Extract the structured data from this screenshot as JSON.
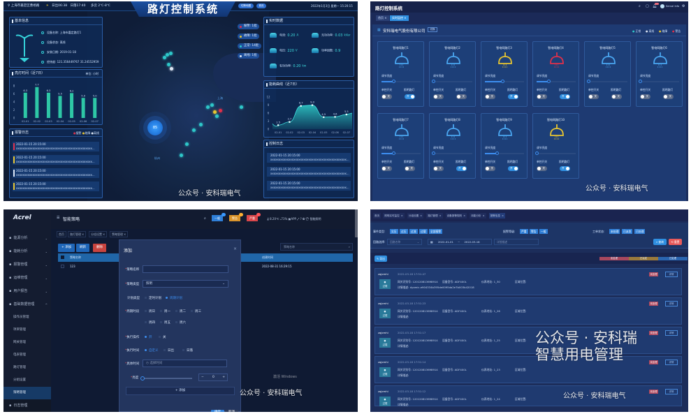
{
  "colors": {
    "alarm": "#e0304a",
    "fault": "#e8c530",
    "normal": "#2ec7c9",
    "offline": "#dfe8f5",
    "lamp_blue": "#4aa6f0",
    "accent": "#2f7fd8"
  },
  "q1": {
    "location": "上海市嘉定区曹杨路",
    "sunrise": "日出06:38",
    "sunset": "日落17:40",
    "weather": "多云 2℃-8℃",
    "title": "路灯控制系统",
    "btn_map": "切换地图",
    "btn_home": "首页",
    "datetime": "2022年1月3日 星期一 15:20:15",
    "basic": {
      "title": "基本信息",
      "rows": [
        "设备名称: 上海市嘉定路灯1",
        "设备状态: 离线",
        "安装日期: 2019-01-18",
        "经纬度: 121.356449767  31.24552959"
      ]
    },
    "legend_pills": [
      {
        "label": "报警: 1批",
        "color": "#e0304a"
      },
      {
        "label": "故障: 1批",
        "color": "#e8c530"
      },
      {
        "label": "正常: 14批",
        "color": "#2ec7c9"
      },
      {
        "label": "离线: 1批",
        "color": "#dfe8f5"
      }
    ],
    "cluster": "85",
    "cities": [
      "上海",
      "杭州"
    ],
    "realtime": {
      "title": "实时数据",
      "items": [
        {
          "label": "电流:",
          "value": "0.20",
          "unit": "A"
        },
        {
          "label": "无功功率:",
          "value": "0.03",
          "unit": "kVar"
        },
        {
          "label": "电压:",
          "value": "220",
          "unit": "V"
        },
        {
          "label": "功率因数:",
          "value": "0.9",
          "unit": ""
        },
        {
          "label": "有功功率:",
          "value": "0.20",
          "unit": "kw"
        }
      ]
    },
    "alarm_log": {
      "title": "报警日志",
      "legend": [
        "报警",
        "故障",
        "离线"
      ],
      "entries": [
        {
          "time": "2022-01-15  20:15:00",
          "text": "xxxxxxxxxxxxxxxxxxxxxxxxxxxxxxxxxxxxxxxxxxxxxx...",
          "color": "#e0304a"
        },
        {
          "time": "2022-01-15  20:15:00",
          "text": "xxxxxxxxxxxxxxxxxxxxxxxxxxxxxxxxxxxxxxxxxxxxxx...",
          "color": "#e8c530"
        },
        {
          "time": "2022-01-15  20:15:00",
          "text": "xxxxxxxxxxxxxxxxxxxxxxxxxxxxxxxxxxxxxxxxxxxxxx...",
          "color": "#dfe8f5"
        },
        {
          "time": "2022-01-15  20:15:00",
          "text": "xxxxxxxxxxxxxxxxxxxxxxxxxxxxxxxxxxxxxxxxxxxxxx...",
          "color": "#e8c530"
        }
      ]
    },
    "control_log": {
      "title": "控制日志",
      "entries": [
        {
          "time": "2022-01-15  20:15:00",
          "text": "xxxxxxxxxxxxxxxxxxxxxxxxxxxxxxxxxxxxxxxxxxxxxx..."
        },
        {
          "time": "2022-01-15  20:15:00",
          "text": "xxxxxxxxxxxxxxxxxxxxxxxxxxxxxxxxxxxxxxxxxxxxxx..."
        },
        {
          "time": "2022-01-15  20:15:00",
          "text": "xxxxxxxxxxxxxxxxxxxxxxxxxxxxxxxxxxxxxxxxxxxxxx..."
        }
      ]
    },
    "watermark": "公众号 · 安科瑞电气"
  },
  "chart_data": [
    {
      "type": "bar",
      "title": "亮灯时间（近7日）",
      "unit": "单位: 小时",
      "categories": [
        "02-01",
        "02-02",
        "02-03",
        "02-04",
        "02-05",
        "02-06",
        "02-07"
      ],
      "values": [
        6.3,
        7.7,
        6.3,
        5.5,
        6.2,
        5.0,
        5.0
      ],
      "yticks": [
        "0",
        "2",
        "4",
        "6",
        "8"
      ],
      "ylim": [
        0,
        8
      ]
    },
    {
      "type": "area",
      "title": "能耗曲线（近7日）",
      "categories": [
        "02-01",
        "02-02",
        "02-03",
        "02-04",
        "02-05",
        "02-06",
        "02-07"
      ],
      "values": [
        1.5,
        2.7,
        8.7,
        9.0,
        4.5,
        4.6,
        5.5
      ],
      "yticks": [
        "0",
        "3",
        "6",
        "9",
        "12"
      ],
      "ylim": [
        0,
        12
      ]
    }
  ],
  "q2": {
    "title": "路灯控制系统",
    "tabs": [
      "首页",
      "实时监控"
    ],
    "user": "Serval Info",
    "badge": "",
    "company": "安科瑞电气股份有限公司",
    "switch": "切换",
    "legend": [
      {
        "label": "正常",
        "color": "#2ec7c9"
      },
      {
        "label": "离线",
        "color": "#dfe8f5"
      },
      {
        "label": "故障",
        "color": "#e8c530"
      },
      {
        "label": "警告",
        "color": "#e0304a"
      }
    ],
    "brightness_label": "调节亮度",
    "single_label": "单控开关",
    "light_label": "照明路灯",
    "on": "开",
    "off": "关",
    "lamps": [
      {
        "name": "智电网路灯1",
        "color": "#4aa6f0",
        "brightness": 30,
        "single": false,
        "light": true
      },
      {
        "name": "智电网路灯2",
        "color": "#4aa6f0",
        "brightness": 0,
        "single": false,
        "light": false
      },
      {
        "name": "智电网路灯3",
        "color": "#e8c530",
        "brightness": 45,
        "single": false,
        "light": true
      },
      {
        "name": "智电网路灯4",
        "color": "#e0304a",
        "brightness": 30,
        "single": false,
        "light": true
      },
      {
        "name": "智电网路灯5",
        "color": "#4aa6f0",
        "brightness": 0,
        "single": false,
        "light": false
      },
      {
        "name": "智电网路灯6",
        "color": "#4aa6f0",
        "brightness": 0,
        "single": false,
        "light": false
      },
      {
        "name": "智电网路灯7",
        "color": "#4aa6f0",
        "brightness": 30,
        "single": false,
        "light": false
      },
      {
        "name": "智电网路灯8",
        "color": "#4aa6f0",
        "brightness": 0,
        "single": false,
        "light": true
      },
      {
        "name": "智电网路灯9",
        "color": "#4aa6f0",
        "brightness": 30,
        "single": false,
        "light": true
      },
      {
        "name": "智电网路灯10",
        "color": "#e8c530",
        "brightness": 0,
        "single": false,
        "light": true
      }
    ],
    "watermark": "公众号 · 安科瑞电气"
  },
  "q3": {
    "logo": "Acrel",
    "page_title": "智能策略",
    "menu": [
      "能源分析",
      "能耗分析",
      "报警管理",
      "运维管理",
      "用户报告",
      "基础数据管理"
    ],
    "submenu": [
      "操作员管理",
      "项目管理",
      "网关管理",
      "电表管理",
      "路灯管理",
      "分组设置",
      "策略管理"
    ],
    "last_menu": "日志管理",
    "breadcrumb": [
      "首页",
      "路灯管理",
      "分组设置",
      "策略管理"
    ],
    "alerts": [
      {
        "label": "一般",
        "color": "#2f7fd8"
      },
      {
        "label": "警告",
        "color": "#d9932a"
      },
      {
        "label": "严重",
        "color": "#d9464a"
      }
    ],
    "temp": "8.20℃",
    "humidity": "71%",
    "app": "APP",
    "user": "智能照明",
    "toolbar": {
      "add": "+ 添加",
      "refresh": "刷新",
      "delete": "删除"
    },
    "search_placeholder": "策略名称",
    "table": {
      "headers": [
        "策略名称",
        "创建时间"
      ],
      "rows": [
        [
          "123",
          "2022-08-31 16:29:15"
        ]
      ]
    },
    "modal": {
      "title": "添加",
      "close": "×",
      "name_label": "策略名称",
      "type_label": "策略类型",
      "type_value": "照明",
      "plan_label": "计划类型",
      "plan_options": [
        "定时计划",
        "周期计划"
      ],
      "cycle_label": "周期时段",
      "days": [
        "周日",
        "周一",
        "周二",
        "周三",
        "周四",
        "周五",
        "周六"
      ],
      "action_label": "执行操作",
      "action_options": [
        "开",
        "关"
      ],
      "exec_label": "执行时间",
      "exec_options": [
        "自定义",
        "日出",
        "日落"
      ],
      "time_label": "具体时间",
      "time_placeholder": "选择时间",
      "brightness_label": "亮度",
      "brightness_value": "0",
      "add_row": "+ 添加",
      "ok": "确定",
      "cancel": "取消"
    },
    "watermark": "公众号 · 安科瑞电气",
    "activate": "激活 Windows"
  },
  "q4": {
    "breadcrumb": [
      "首页",
      "照明实时监控",
      "分组设置",
      "路灯管理",
      "设备报警规则",
      "用能分析",
      "报警信息"
    ],
    "event_label": "事件类型:",
    "events": [
      "欠压",
      "过压",
      "过流",
      "过载",
      "全部报警"
    ],
    "level_label": "报警等级:",
    "levels": [
      "严重",
      "警告",
      "一般"
    ],
    "order_label": "工单状态:",
    "orders": [
      "未处理",
      "已派发",
      "已处理"
    ],
    "loop_label": "回路选择:",
    "loop_placeholder": "回路名称",
    "date_from": "2022-01-01",
    "date_sep": "~",
    "date_to": "2022-03-18",
    "desc_placeholder": "详细描述",
    "query": "查询",
    "reset": "重置",
    "export": "导出",
    "status_bar": [
      {
        "label": "未处理",
        "color": "#a8485e"
      },
      {
        "label": "已派发",
        "color": "#9a7a3c"
      },
      {
        "label": "已处理",
        "color": "#2a65b0"
      }
    ],
    "items": [
      {
        "name": "zqjcmhi",
        "time": "2022-03-18 17:51:47",
        "gateway": "网关识别号: 120120813698914",
        "model": "设备型号: ADF400L",
        "addr": "仪表地址: 1_30",
        "area": "区域位置:",
        "desc": "详情描述: dyamic.e904334b395de0095da2e7b003b42018",
        "status": "未处理",
        "detail": "详情",
        "icon_label": "过载"
      },
      {
        "name": "zqjcmhi",
        "time": "2022-03-18 17:51:23",
        "gateway": "网关识别号: 120120813698914",
        "model": "设备型号: ADF400L",
        "addr": "仪表地址: 1_26",
        "area": "区域位置:",
        "desc": "详情描述:",
        "status": "未处理",
        "detail": "详情",
        "icon_label": "过载"
      },
      {
        "name": "zqjcmhi",
        "time": "2022-03-18 17:51:17",
        "gateway": "网关识别号: 120120813698914",
        "model": "设备型号: ADF400L",
        "addr": "仪表地址: 1_25",
        "area": "区域位置:",
        "desc": "详情描述:",
        "status": "未处理",
        "detail": "详情",
        "icon_label": "过载"
      },
      {
        "name": "zqjcmhi",
        "time": "2022-03-18 17:51:14",
        "gateway": "网关识别号: 120120813698914",
        "model": "设备型号: ADF400L",
        "addr": "仪表地址: 1_23",
        "area": "区域位置:",
        "desc": "详情描述:",
        "status": "未处理",
        "detail": "详情",
        "icon_label": "过载"
      },
      {
        "name": "zqjcmhi",
        "time": "2022-03-18 17:51:12",
        "gateway": "网关识别号: 120120813698914",
        "model": "设备型号: ADF400L",
        "addr": "仪表地址: 1_24",
        "area": "区域位置:",
        "desc": "详情描述:",
        "status": "未处理",
        "detail": "详情",
        "icon_label": "过载"
      }
    ],
    "watermark_big": "公众号 · 安科瑞智慧用电管理",
    "watermark": "公众号 · 安科瑞电气"
  }
}
